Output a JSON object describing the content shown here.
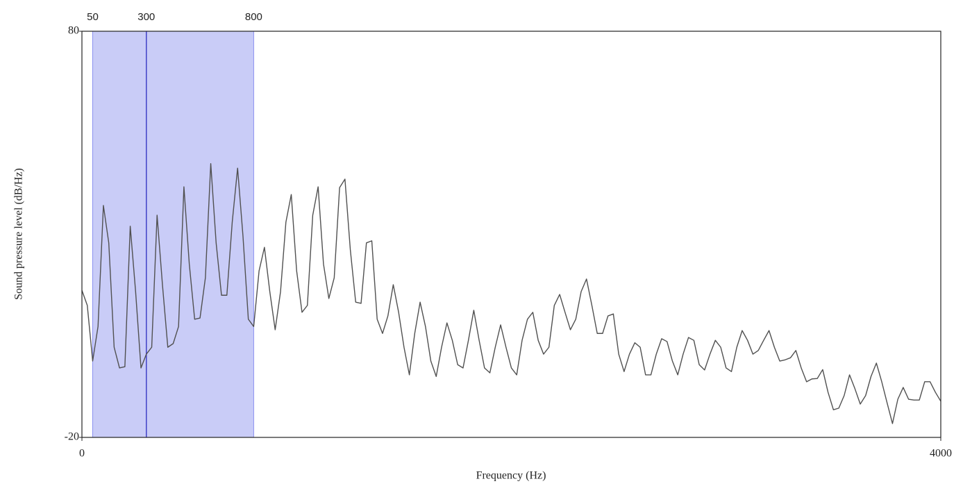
{
  "chart_data": {
    "type": "line",
    "x_label": "Frequency (Hz)",
    "y_label": "Sound pressure level (dB/Hz)",
    "xlim": [
      0,
      4000
    ],
    "ylim": [
      -20,
      80
    ],
    "xticks": [
      0,
      4000
    ],
    "yticks": [
      -20,
      80
    ],
    "top_ticks": [
      50,
      300,
      800
    ],
    "highlight_span": [
      50,
      800
    ],
    "highlight_color": "#c9ccf7",
    "marker_line": 300,
    "marker_color": "#4040c8",
    "color": "#505050",
    "x": [
      0,
      25,
      50,
      75,
      100,
      125,
      150,
      175,
      200,
      225,
      250,
      275,
      300,
      325,
      350,
      375,
      400,
      425,
      450,
      475,
      500,
      525,
      550,
      575,
      600,
      625,
      650,
      675,
      700,
      725,
      750,
      775,
      800,
      825,
      850,
      875,
      900,
      925,
      950,
      975,
      1000,
      1025,
      1050,
      1075,
      1100,
      1125,
      1150,
      1175,
      1200,
      1225,
      1250,
      1275,
      1300,
      1325,
      1350,
      1375,
      1400,
      1425,
      1450,
      1475,
      1500,
      1525,
      1550,
      1575,
      1600,
      1625,
      1650,
      1675,
      1700,
      1725,
      1750,
      1775,
      1800,
      1825,
      1850,
      1875,
      1900,
      1925,
      1950,
      1975,
      2000,
      2025,
      2050,
      2075,
      2100,
      2125,
      2150,
      2175,
      2200,
      2225,
      2250,
      2275,
      2300,
      2325,
      2350,
      2375,
      2400,
      2425,
      2450,
      2475,
      2500,
      2525,
      2550,
      2575,
      2600,
      2625,
      2650,
      2675,
      2700,
      2725,
      2750,
      2775,
      2800,
      2825,
      2850,
      2875,
      2900,
      2925,
      2950,
      2975,
      3000,
      3025,
      3050,
      3075,
      3100,
      3125,
      3150,
      3175,
      3200,
      3225,
      3250,
      3275,
      3300,
      3325,
      3350,
      3375,
      3400,
      3425,
      3450,
      3475,
      3500,
      3525,
      3550,
      3575,
      3600,
      3625,
      3650,
      3675,
      3700,
      3725,
      3750,
      3775,
      3800,
      3825,
      3850,
      3875,
      3900,
      3925,
      3950,
      3975,
      4000
    ],
    "values": [
      16.2,
      12.5,
      -1.2,
      7.3,
      37.1,
      27.9,
      2.2,
      -2.9,
      -2.6,
      32,
      15.9,
      -2.9,
      0.5,
      2.2,
      34.7,
      17.6,
      2.2,
      3.1,
      7.3,
      41.7,
      22.7,
      9.1,
      9.4,
      19.3,
      47.4,
      27.9,
      15,
      15,
      33,
      46.3,
      29.6,
      9.1,
      7.3,
      21,
      26.8,
      15.9,
      6.5,
      15.9,
      33,
      39.8,
      21,
      10.8,
      12.5,
      34.7,
      41.7,
      22.7,
      14.2,
      19.3,
      41.5,
      43.6,
      26.2,
      13.3,
      13,
      27.9,
      28.4,
      9.1,
      5.6,
      9.9,
      17.6,
      10.8,
      2.2,
      -4.6,
      5.6,
      13.3,
      7.3,
      -1.2,
      -5,
      2.2,
      8.2,
      3.9,
      -2.1,
      -2.9,
      3.9,
      11.3,
      3.9,
      -2.9,
      -4.1,
      2.2,
      7.7,
      2.2,
      -2.9,
      -4.6,
      3.9,
      9.1,
      10.8,
      3.9,
      0.5,
      2.2,
      12.5,
      15.2,
      10.8,
      6.5,
      9.1,
      15.9,
      19,
      12.5,
      5.6,
      5.6,
      9.9,
      10.4,
      0.5,
      -3.8,
      0.5,
      3.3,
      2.2,
      -4.6,
      -4.6,
      0.5,
      4.3,
      3.6,
      -1.2,
      -4.6,
      0.5,
      4.6,
      3.9,
      -2.1,
      -3.4,
      0.5,
      3.9,
      2.2,
      -2.9,
      -3.8,
      2.2,
      6.3,
      3.9,
      0.5,
      1.4,
      3.9,
      6.3,
      2.2,
      -1.2,
      -0.9,
      -0.4,
      1.4,
      -2.9,
      -6.3,
      -5.6,
      -5.5,
      -3.3,
      -8.9,
      -13.2,
      -12.8,
      -9.7,
      -4.6,
      -8,
      -11.8,
      -9.7,
      -5,
      -1.7,
      -6.3,
      -11.5,
      -16.6,
      -10.6,
      -7.7,
      -10.6,
      -10.8,
      -10.8,
      -6.3,
      -6.3,
      -8.9,
      -11.1
    ]
  }
}
